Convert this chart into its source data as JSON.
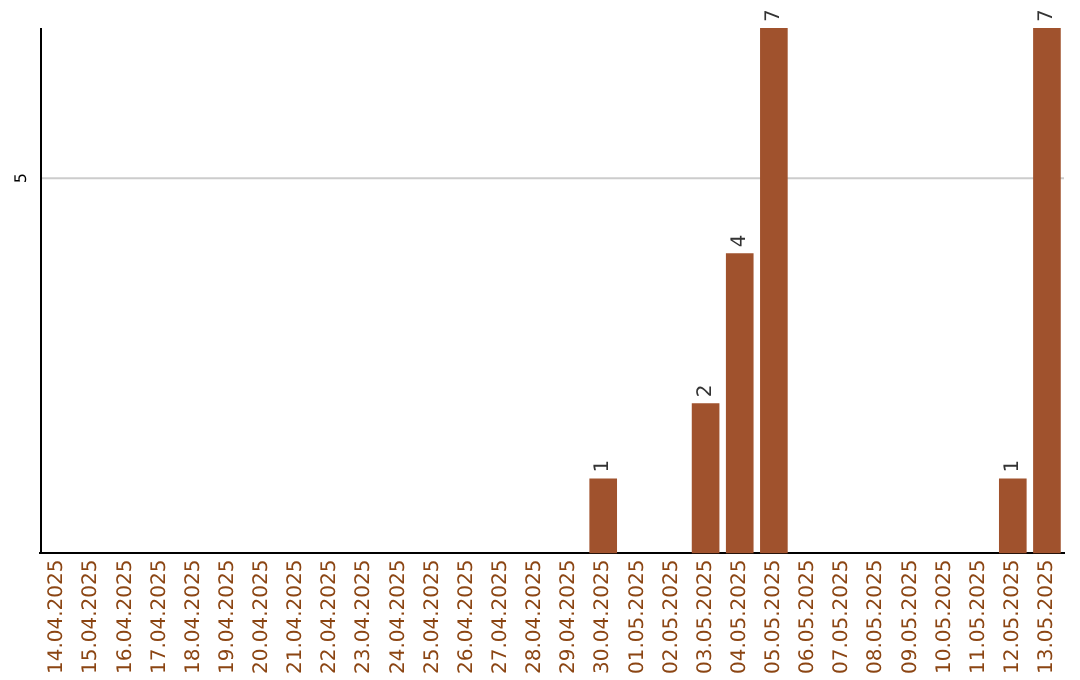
{
  "chart_data": {
    "type": "bar",
    "ylim": [
      0,
      7
    ],
    "categories": [
      "14.04.2025",
      "15.04.2025",
      "16.04.2025",
      "17.04.2025",
      "18.04.2025",
      "19.04.2025",
      "20.04.2025",
      "21.04.2025",
      "22.04.2025",
      "23.04.2025",
      "24.04.2025",
      "25.04.2025",
      "26.04.2025",
      "27.04.2025",
      "28.04.2025",
      "29.04.2025",
      "30.04.2025",
      "01.05.2025",
      "02.05.2025",
      "03.05.2025",
      "04.05.2025",
      "05.05.2025",
      "06.05.2025",
      "07.05.2025",
      "08.05.2025",
      "09.05.2025",
      "10.05.2025",
      "11.05.2025",
      "12.05.2025",
      "13.05.2025"
    ],
    "values": [
      null,
      null,
      null,
      null,
      null,
      null,
      null,
      null,
      null,
      null,
      null,
      null,
      null,
      null,
      null,
      null,
      1,
      null,
      null,
      2,
      4,
      7,
      null,
      null,
      null,
      null,
      null,
      null,
      1,
      7
    ],
    "value_labels": [
      null,
      null,
      null,
      null,
      null,
      null,
      null,
      null,
      null,
      null,
      null,
      null,
      null,
      null,
      null,
      null,
      "1",
      null,
      null,
      "2",
      "4",
      "7",
      null,
      null,
      null,
      null,
      null,
      null,
      "1",
      "7"
    ],
    "ref_lines": [
      {
        "axis": "y",
        "value": 5,
        "label": "5",
        "color": "#cccccc"
      }
    ],
    "color": "#a0522d",
    "legend": false
  }
}
